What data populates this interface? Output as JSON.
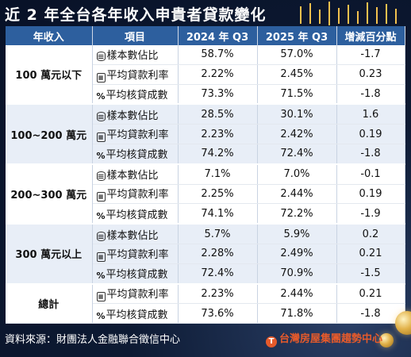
{
  "title": "近 2 年全台各年收入申貴者貸款變化",
  "headers": [
    "年收入",
    "項目",
    "2024 年 Q3",
    "2025 年 Q3",
    "增減百分點"
  ],
  "groups": [
    {
      "label": "100 萬元以下",
      "rows": [
        {
          "icon": "coins-icon",
          "glyph": "≡",
          "item": "樣本數佔比",
          "y2024": "58.7%",
          "y2025": "57.0%",
          "diff": "-1.7"
        },
        {
          "icon": "calculator-icon",
          "glyph": "▦",
          "item": "平均貸款利率",
          "y2024": "2.22%",
          "y2025": "2.45%",
          "diff": "0.23"
        },
        {
          "icon": "percent-icon",
          "glyph": "%",
          "item": "平均核貸成數",
          "y2024": "73.3%",
          "y2025": "71.5%",
          "diff": "-1.8"
        }
      ]
    },
    {
      "label": "100~200 萬元",
      "rows": [
        {
          "icon": "coins-icon",
          "glyph": "≡",
          "item": "樣本數佔比",
          "y2024": "28.5%",
          "y2025": "30.1%",
          "diff": "1.6"
        },
        {
          "icon": "calculator-icon",
          "glyph": "▦",
          "item": "平均貸款利率",
          "y2024": "2.23%",
          "y2025": "2.42%",
          "diff": "0.19"
        },
        {
          "icon": "percent-icon",
          "glyph": "%",
          "item": "平均核貸成數",
          "y2024": "74.2%",
          "y2025": "72.4%",
          "diff": "-1.8"
        }
      ]
    },
    {
      "label": "200~300 萬元",
      "rows": [
        {
          "icon": "coins-icon",
          "glyph": "≡",
          "item": "樣本數佔比",
          "y2024": "7.1%",
          "y2025": "7.0%",
          "diff": "-0.1"
        },
        {
          "icon": "calculator-icon",
          "glyph": "▦",
          "item": "平均貸款利率",
          "y2024": "2.25%",
          "y2025": "2.44%",
          "diff": "0.19"
        },
        {
          "icon": "percent-icon",
          "glyph": "%",
          "item": "平均核貸成數",
          "y2024": "74.1%",
          "y2025": "72.2%",
          "diff": "-1.9"
        }
      ]
    },
    {
      "label": "300 萬元以上",
      "rows": [
        {
          "icon": "coins-icon",
          "glyph": "≡",
          "item": "樣本數佔比",
          "y2024": "5.7%",
          "y2025": "5.9%",
          "diff": "0.2"
        },
        {
          "icon": "calculator-icon",
          "glyph": "▦",
          "item": "平均貸款利率",
          "y2024": "2.28%",
          "y2025": "2.49%",
          "diff": "0.21"
        },
        {
          "icon": "percent-icon",
          "glyph": "%",
          "item": "平均核貸成數",
          "y2024": "72.4%",
          "y2025": "70.9%",
          "diff": "-1.5"
        }
      ]
    },
    {
      "label": "總計",
      "rows": [
        {
          "icon": "calculator-icon",
          "glyph": "▦",
          "item": "平均貸款利率",
          "y2024": "2.23%",
          "y2025": "2.44%",
          "diff": "0.21"
        },
        {
          "icon": "percent-icon",
          "glyph": "%",
          "item": "平均核貸成數",
          "y2024": "73.6%",
          "y2025": "71.8%",
          "diff": "-1.8"
        }
      ]
    }
  ],
  "footer": {
    "source": "資料來源：財團法人金融聯合徵信中心",
    "brand": "台灣房屋集團趨勢中心",
    "brand_mark": "T"
  },
  "colors": {
    "header": "#2d5f9e",
    "row_white": "#ffffff",
    "row_blue": "#e8eef7",
    "background": "#0d1a33",
    "brand": "#e55a2b"
  }
}
